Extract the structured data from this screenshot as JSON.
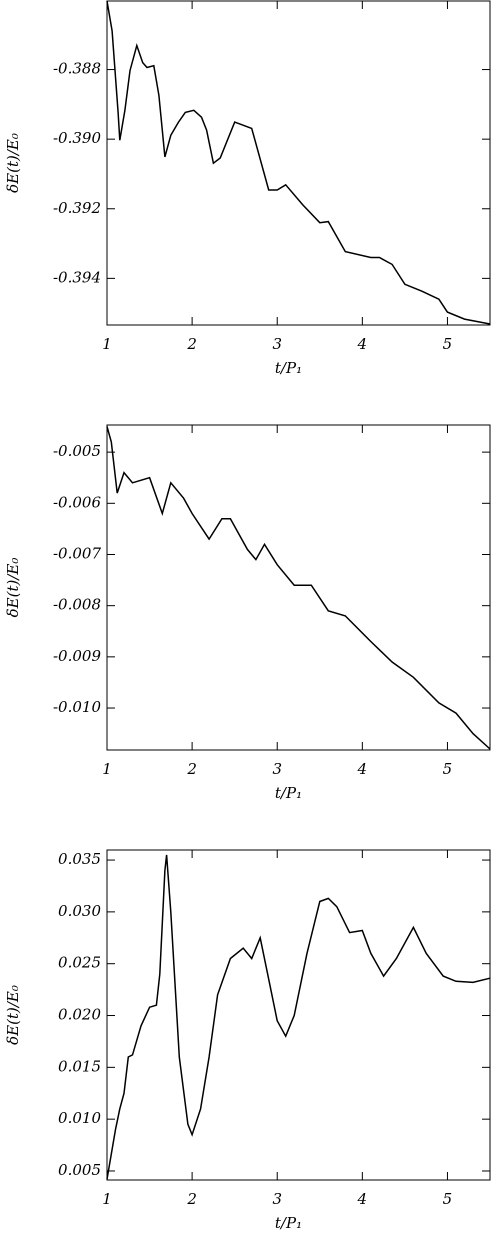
{
  "chart_data": [
    {
      "type": "line",
      "x_label": "t/P₁",
      "y_label": "δE(t)/E₀",
      "color": "#000000",
      "xlim": [
        1,
        5.5
      ],
      "ylim": [
        -0.39534,
        -0.38603
      ],
      "xticks": [
        1,
        2,
        3,
        4,
        5
      ],
      "yticks": [
        -0.388,
        {
          "value": -0.39,
          "label": "-0.390"
        },
        -0.392,
        -0.394
      ],
      "x": [
        1.0,
        1.06,
        1.13,
        1.15,
        1.21,
        1.27,
        1.35,
        1.42,
        1.47,
        1.55,
        1.61,
        1.68,
        1.75,
        1.84,
        1.92,
        2.02,
        2.11,
        2.17,
        2.25,
        2.33,
        2.5,
        2.7,
        2.9,
        3.0,
        3.1,
        3.3,
        3.5,
        3.6,
        3.8,
        4.1,
        4.2,
        4.35,
        4.5,
        4.7,
        4.9,
        5.0,
        5.2,
        5.5
      ],
      "values": [
        -0.38603,
        -0.38689,
        -0.38923,
        -0.39003,
        -0.38917,
        -0.38803,
        -0.38731,
        -0.3878,
        -0.38794,
        -0.38789,
        -0.38874,
        -0.39051,
        -0.38989,
        -0.38951,
        -0.38923,
        -0.38917,
        -0.38937,
        -0.38974,
        -0.39069,
        -0.39054,
        -0.38951,
        -0.38969,
        -0.39146,
        -0.39146,
        -0.39131,
        -0.39189,
        -0.3924,
        -0.39237,
        -0.39323,
        -0.3934,
        -0.3934,
        -0.3936,
        -0.39417,
        -0.39437,
        -0.3946,
        -0.39497,
        -0.39517,
        -0.39531
      ]
    },
    {
      "type": "line",
      "x_label": "t/P₁",
      "y_label": "δE(t)/E₀",
      "color": "#000000",
      "xlim": [
        1,
        5.5
      ],
      "ylim": [
        -0.01082,
        -0.00447
      ],
      "xticks": [
        1,
        2,
        3,
        4,
        5
      ],
      "yticks": [
        -0.005,
        -0.006,
        -0.007,
        -0.008,
        -0.009,
        {
          "value": -0.01,
          "label": "-0.010"
        }
      ],
      "x": [
        1.0,
        1.05,
        1.12,
        1.2,
        1.3,
        1.5,
        1.65,
        1.75,
        1.9,
        2.0,
        2.2,
        2.35,
        2.45,
        2.65,
        2.75,
        2.85,
        3.0,
        3.2,
        3.4,
        3.6,
        3.8,
        4.1,
        4.35,
        4.6,
        4.9,
        5.1,
        5.3,
        5.5
      ],
      "values": [
        -0.0045,
        -0.0048,
        -0.0058,
        -0.0054,
        -0.0056,
        -0.0055,
        -0.0062,
        -0.0056,
        -0.0059,
        -0.0062,
        -0.0067,
        -0.0063,
        -0.0063,
        -0.0069,
        -0.0071,
        -0.0068,
        -0.0072,
        -0.0076,
        -0.0076,
        -0.0081,
        -0.0082,
        -0.0087,
        -0.0091,
        -0.0094,
        -0.0099,
        -0.0101,
        -0.0105,
        -0.0108
      ]
    },
    {
      "type": "line",
      "x_label": "t/P₁",
      "y_label": "δE(t)/E₀",
      "color": "#000000",
      "xlim": [
        1,
        5.5
      ],
      "ylim": [
        0.00413,
        0.03597
      ],
      "xticks": [
        1,
        2,
        3,
        4,
        5
      ],
      "yticks": [
        0.035,
        {
          "value": 0.03,
          "label": "0.030"
        },
        0.025,
        {
          "value": 0.02,
          "label": "0.020"
        },
        0.015,
        {
          "value": 0.01,
          "label": "0.010"
        },
        0.005
      ],
      "x": [
        1.0,
        1.1,
        1.15,
        1.2,
        1.25,
        1.3,
        1.4,
        1.5,
        1.58,
        1.62,
        1.68,
        1.7,
        1.75,
        1.85,
        1.95,
        2.0,
        2.1,
        2.2,
        2.3,
        2.45,
        2.6,
        2.7,
        2.8,
        2.9,
        3.0,
        3.1,
        3.2,
        3.35,
        3.5,
        3.6,
        3.7,
        3.85,
        4.0,
        4.1,
        4.25,
        4.4,
        4.6,
        4.75,
        4.95,
        5.1,
        5.3,
        5.5
      ],
      "values": [
        0.0042,
        0.009,
        0.011,
        0.0125,
        0.016,
        0.0162,
        0.019,
        0.0208,
        0.021,
        0.024,
        0.034,
        0.0355,
        0.03,
        0.016,
        0.0095,
        0.0085,
        0.011,
        0.016,
        0.022,
        0.0255,
        0.0265,
        0.0255,
        0.0275,
        0.0235,
        0.0195,
        0.018,
        0.02,
        0.026,
        0.031,
        0.0313,
        0.0305,
        0.028,
        0.0282,
        0.026,
        0.0238,
        0.0255,
        0.0285,
        0.026,
        0.0238,
        0.0233,
        0.0232,
        0.0236
      ]
    }
  ]
}
